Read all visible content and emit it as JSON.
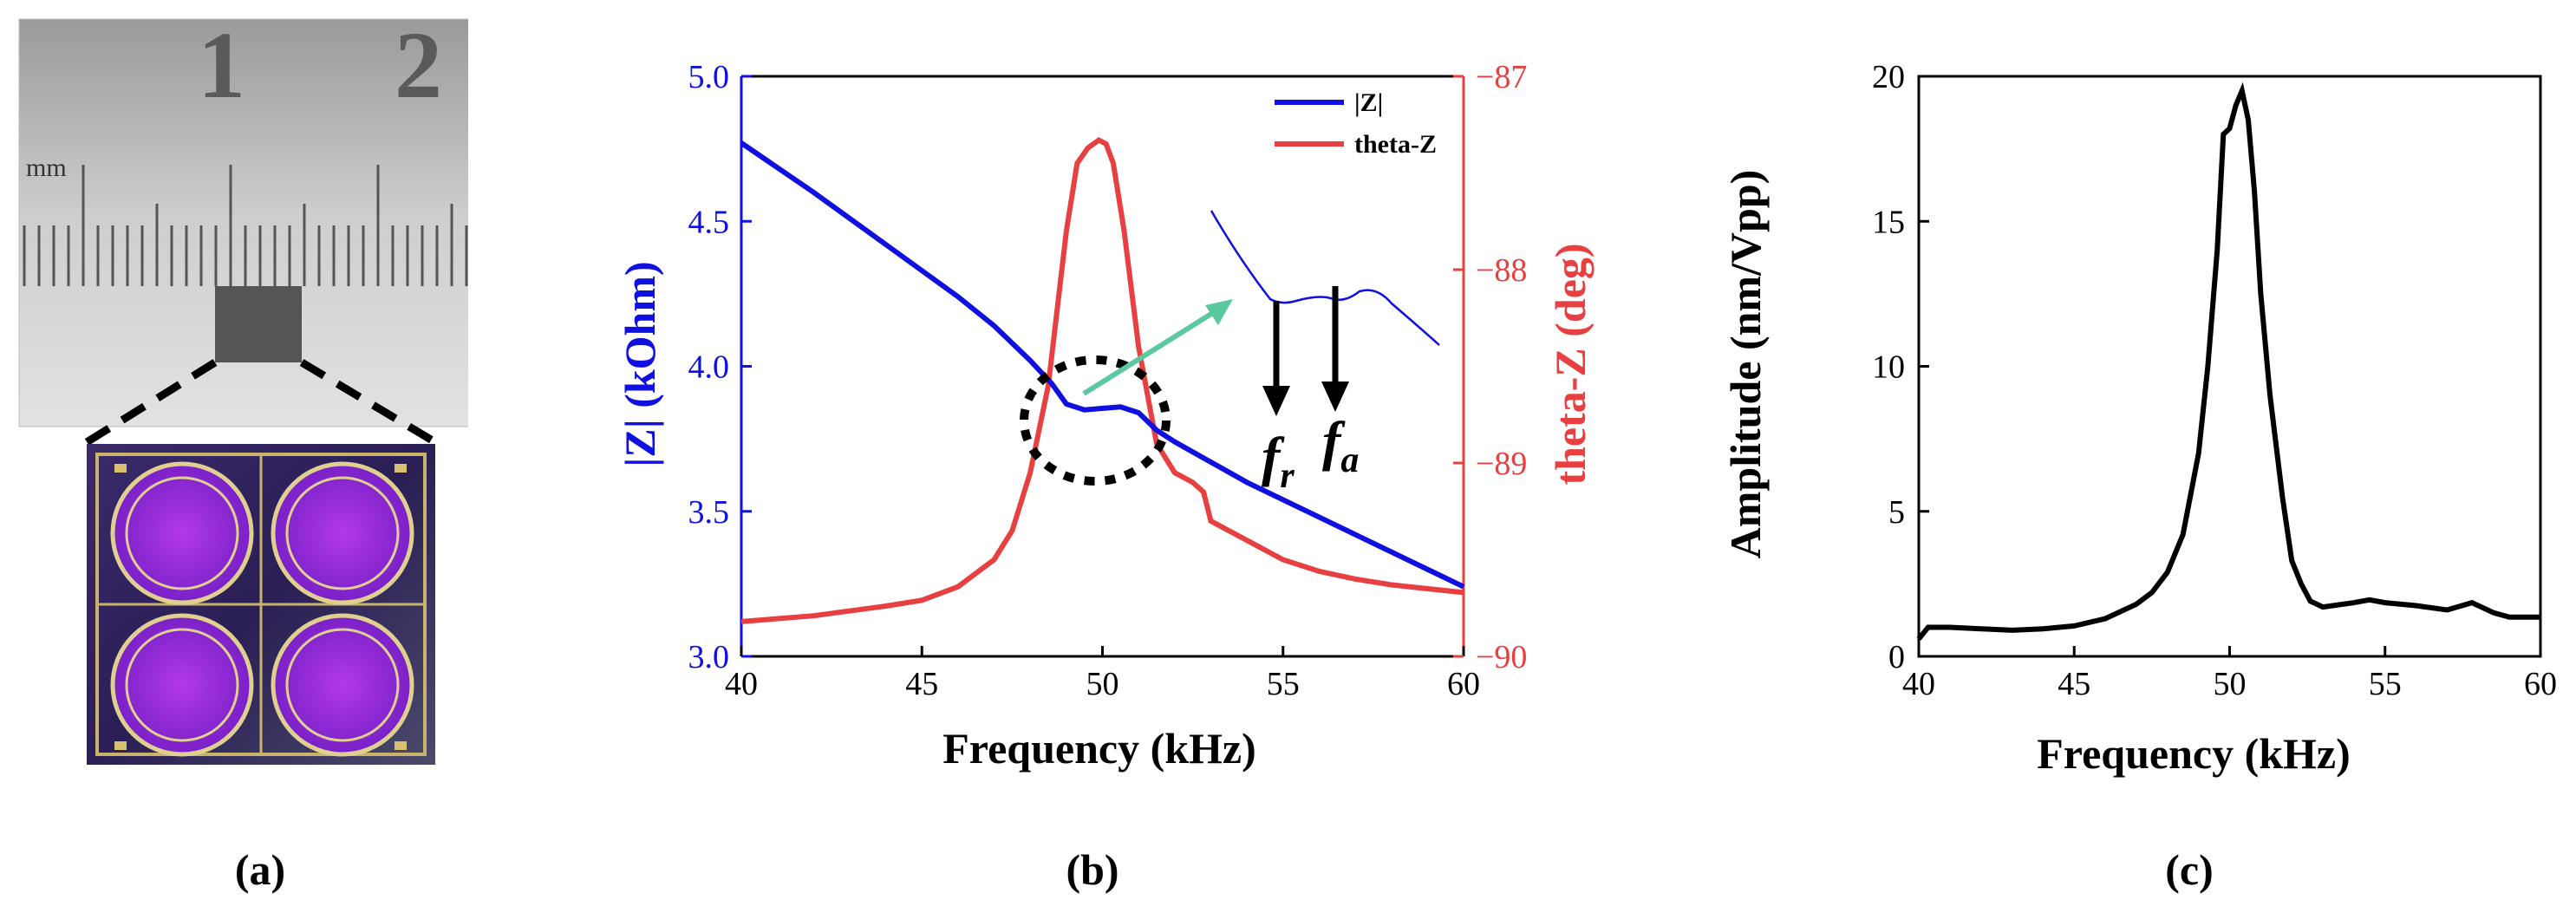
{
  "panels": {
    "a": {
      "label": "(a)",
      "ruler": {
        "numbers": [
          "1",
          "2"
        ],
        "unit": "mm"
      }
    },
    "b": {
      "label": "(b)",
      "xlabel": "Frequency (kHz)",
      "ylabel_left": "|Z| (kOhm)",
      "ylabel_right": "theta-Z (deg)",
      "annotation_fr": "f",
      "annotation_fr_sub": "r",
      "annotation_fa": "f",
      "annotation_fa_sub": "a"
    },
    "c": {
      "label": "(c)",
      "xlabel": "Frequency (kHz)",
      "ylabel": "Amplitude (nm/Vpp)"
    }
  },
  "colors": {
    "z": "#1010e0",
    "theta": "#e84040",
    "amp": "#000000",
    "arrow": "#5cc8a0"
  },
  "chart_data": [
    {
      "id": "b",
      "type": "line",
      "title": "",
      "xlabel": "Frequency (kHz)",
      "ylabel": "|Z| (kOhm)",
      "y2label": "theta-Z (deg)",
      "xlim": [
        40,
        60
      ],
      "ylim": [
        3.0,
        5.0
      ],
      "y2lim": [
        -90,
        -87
      ],
      "x_ticks": [
        "40",
        "45",
        "50",
        "55",
        "60"
      ],
      "y_ticks": [
        "3.0",
        "3.5",
        "4.0",
        "4.5",
        "5.0"
      ],
      "y2_ticks": [
        "-90",
        "-89",
        "-88",
        "-87"
      ],
      "legend": "top-right",
      "series": [
        {
          "name": "|Z|",
          "axis": "left",
          "x": [
            40,
            42,
            44,
            46,
            47,
            48,
            48.6,
            49,
            49.5,
            50,
            50.5,
            51,
            51.5,
            52,
            54,
            56,
            58,
            60
          ],
          "values": [
            4.77,
            4.6,
            4.42,
            4.24,
            4.14,
            4.02,
            3.94,
            3.87,
            3.85,
            3.855,
            3.86,
            3.84,
            3.78,
            3.74,
            3.6,
            3.48,
            3.36,
            3.24
          ]
        },
        {
          "name": "theta-Z",
          "axis": "right",
          "x": [
            40,
            42,
            44,
            45,
            46,
            47,
            47.5,
            48,
            48.5,
            49,
            49.3,
            49.6,
            49.9,
            50.1,
            50.3,
            50.6,
            51,
            51.5,
            52,
            52.5,
            52.8,
            53,
            54,
            55,
            56,
            57,
            58,
            60
          ],
          "values": [
            -89.82,
            -89.79,
            -89.74,
            -89.71,
            -89.64,
            -89.5,
            -89.35,
            -89.05,
            -88.6,
            -87.8,
            -87.45,
            -87.37,
            -87.33,
            -87.35,
            -87.45,
            -87.8,
            -88.4,
            -88.9,
            -89.05,
            -89.1,
            -89.15,
            -89.3,
            -89.4,
            -89.5,
            -89.56,
            -89.6,
            -89.63,
            -89.67
          ]
        }
      ]
    },
    {
      "id": "c",
      "type": "line",
      "title": "",
      "xlabel": "Frequency (kHz)",
      "ylabel": "Amplitude (nm/Vpp)",
      "xlim": [
        40,
        60
      ],
      "ylim": [
        0,
        20
      ],
      "x_ticks": [
        "40",
        "45",
        "50",
        "55",
        "60"
      ],
      "y_ticks": [
        "0",
        "5",
        "10",
        "15",
        "20"
      ],
      "series": [
        {
          "name": "Amplitude",
          "x": [
            40,
            40.3,
            41,
            42,
            43,
            44,
            45,
            46,
            47,
            47.5,
            48,
            48.5,
            49,
            49.3,
            49.6,
            49.8,
            50,
            50.2,
            50.4,
            50.6,
            50.8,
            51,
            51.3,
            51.7,
            52,
            52.3,
            52.6,
            53,
            54,
            54.5,
            55,
            56,
            57,
            57.8,
            58.5,
            59,
            60
          ],
          "values": [
            0.6,
            1.0,
            1.0,
            0.95,
            0.9,
            0.95,
            1.05,
            1.3,
            1.8,
            2.2,
            2.9,
            4.2,
            7.0,
            10,
            14,
            18,
            18.2,
            19.0,
            19.5,
            18.5,
            16,
            12.5,
            9,
            5.5,
            3.3,
            2.5,
            1.9,
            1.7,
            1.85,
            1.95,
            1.85,
            1.75,
            1.6,
            1.85,
            1.5,
            1.35,
            1.35
          ]
        }
      ]
    }
  ]
}
